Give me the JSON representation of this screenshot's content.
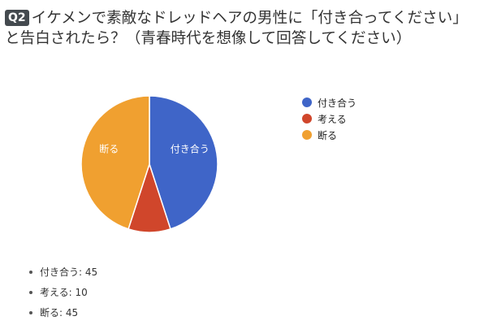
{
  "question": {
    "badge": "Q2",
    "text": "イケメンで素敵なドレッドヘアの男性に「付き合ってください」と告白されたら？（青春時代を想像して回答してください）"
  },
  "chart_data": {
    "type": "pie",
    "slices": [
      {
        "label": "付き合う",
        "value": 45,
        "color": "#3f65c8"
      },
      {
        "label": "考える",
        "value": 10,
        "color": "#d0462b"
      },
      {
        "label": "断る",
        "value": 45,
        "color": "#f0a030"
      }
    ],
    "legend_position": "right"
  },
  "summary": [
    {
      "text": "付き合う: 45"
    },
    {
      "text": "考える: 10"
    },
    {
      "text": "断る: 45"
    }
  ]
}
